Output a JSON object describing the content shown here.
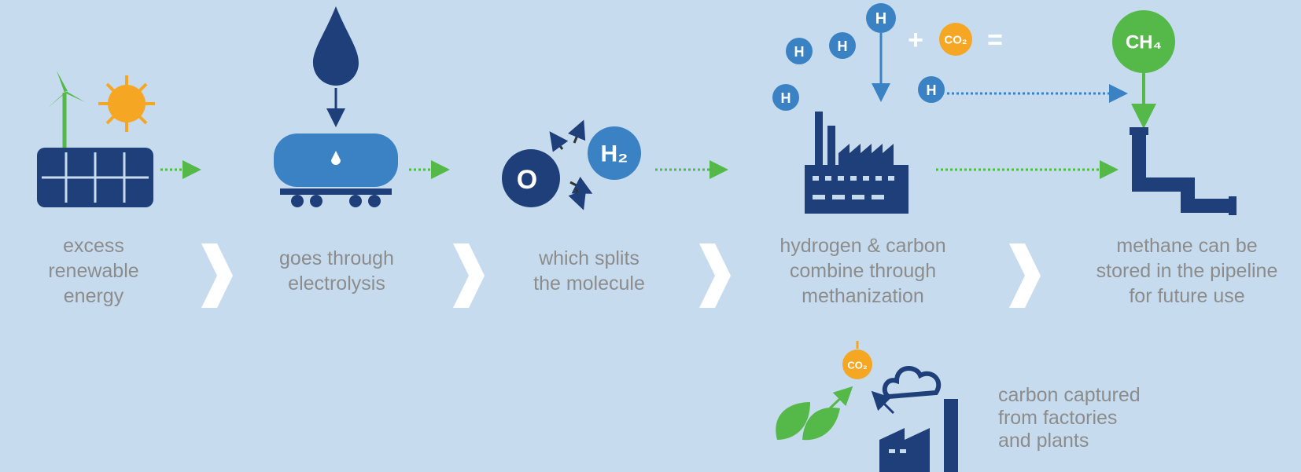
{
  "steps": [
    {
      "caption": [
        "excess",
        "renewable",
        "energy"
      ]
    },
    {
      "caption": [
        "goes through",
        "electrolysis"
      ]
    },
    {
      "caption": [
        "which splits",
        "the molecule"
      ]
    },
    {
      "caption": [
        "hydrogen & carbon",
        "combine through",
        "methanization"
      ]
    },
    {
      "caption": [
        "methane can be",
        "stored in the pipeline",
        "for future use"
      ]
    }
  ],
  "icons": {
    "hydrogen": "H",
    "hydrogen_molecule": "H₂",
    "oxygen": "O",
    "plus": "+",
    "carbon_dioxide": "CO₂",
    "equals": "=",
    "methane": "CH₄"
  },
  "side_note": {
    "caption": [
      "carbon captured",
      "from factories",
      "and plants"
    ]
  }
}
